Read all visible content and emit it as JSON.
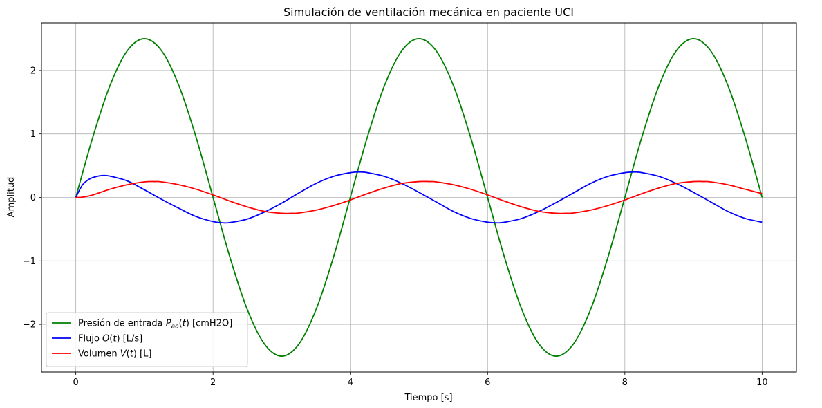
{
  "chart_data": {
    "type": "line",
    "title": "Simulación de ventilación mecánica en paciente UCI",
    "xlabel": "Tiempo [s]",
    "ylabel": "Amplitud",
    "xlim": [
      -0.5,
      10.5
    ],
    "ylim": [
      -2.75,
      2.75
    ],
    "xticks": [
      0,
      2,
      4,
      6,
      8,
      10
    ],
    "xtick_labels": [
      "0",
      "2",
      "4",
      "6",
      "8",
      "10"
    ],
    "yticks": [
      -2,
      -1,
      0,
      1,
      2
    ],
    "ytick_labels": [
      "−2",
      "−1",
      "0",
      "1",
      "2"
    ],
    "grid": true,
    "legend_position": "lower-left",
    "series": [
      {
        "name": "Presión de entrada P_ao(t) [cmH2O]",
        "legend_prefix": "Presión de entrada ",
        "legend_math": "P",
        "legend_sub": "ao",
        "legend_suffix": "(t) [cmH2O]",
        "color": "#008000",
        "x": [
          0,
          0.25,
          0.5,
          0.75,
          1,
          1.25,
          1.5,
          1.75,
          2,
          2.25,
          2.5,
          2.75,
          3,
          3.25,
          3.5,
          3.75,
          4,
          4.25,
          4.5,
          4.75,
          5,
          5.25,
          5.5,
          5.75,
          6,
          6.25,
          6.5,
          6.75,
          7,
          7.25,
          7.5,
          7.75,
          8,
          8.25,
          8.5,
          8.75,
          9,
          9.25,
          9.5,
          9.75,
          10
        ],
        "y": [
          0,
          0.957,
          1.768,
          2.31,
          2.5,
          2.31,
          1.768,
          0.957,
          0,
          -0.957,
          -1.768,
          -2.31,
          -2.5,
          -2.31,
          -1.768,
          -0.957,
          0,
          0.957,
          1.768,
          2.31,
          2.5,
          2.31,
          1.768,
          0.957,
          0,
          -0.957,
          -1.768,
          -2.31,
          -2.5,
          -2.31,
          -1.768,
          -0.957,
          0,
          0.957,
          1.768,
          2.31,
          2.5,
          2.31,
          1.768,
          0.957,
          0
        ]
      },
      {
        "name": "Flujo Q(t) [L/s]",
        "legend_prefix": "Flujo ",
        "legend_math": "Q",
        "legend_sub": "",
        "legend_suffix": "(t) [L/s]",
        "color": "#0000ff",
        "x": [
          0,
          0.1,
          0.2,
          0.3,
          0.4,
          0.5,
          0.75,
          1,
          1.25,
          1.5,
          1.75,
          2,
          2.15,
          2.25,
          2.5,
          2.75,
          3,
          3.25,
          3.5,
          3.75,
          4,
          4.15,
          4.25,
          4.5,
          4.75,
          5,
          5.25,
          5.5,
          5.75,
          6,
          6.15,
          6.25,
          6.5,
          6.75,
          7,
          7.25,
          7.5,
          7.75,
          8,
          8.15,
          8.25,
          8.5,
          8.75,
          9,
          9.25,
          9.5,
          9.75,
          10
        ],
        "y": [
          0,
          0.2,
          0.29,
          0.33,
          0.345,
          0.335,
          0.26,
          0.12,
          -0.03,
          -0.17,
          -0.3,
          -0.38,
          -0.4,
          -0.395,
          -0.34,
          -0.23,
          -0.09,
          0.07,
          0.22,
          0.33,
          0.39,
          0.4,
          0.39,
          0.33,
          0.22,
          0.08,
          -0.07,
          -0.22,
          -0.33,
          -0.39,
          -0.4,
          -0.39,
          -0.33,
          -0.22,
          -0.08,
          0.07,
          0.22,
          0.33,
          0.39,
          0.4,
          0.39,
          0.33,
          0.22,
          0.08,
          -0.07,
          -0.22,
          -0.33,
          -0.39
        ]
      },
      {
        "name": "Volumen V(t) [L]",
        "legend_prefix": "Volumen ",
        "legend_math": "V",
        "legend_sub": "",
        "legend_suffix": "(t) [L]",
        "color": "#ff0000",
        "x": [
          0,
          0.1,
          0.25,
          0.5,
          0.75,
          1,
          1.15,
          1.25,
          1.5,
          1.75,
          2,
          2.25,
          2.5,
          2.75,
          3,
          3.15,
          3.25,
          3.5,
          3.75,
          4,
          4.25,
          4.5,
          4.75,
          5,
          5.15,
          5.25,
          5.5,
          5.75,
          6,
          6.25,
          6.5,
          6.75,
          7,
          7.15,
          7.25,
          7.5,
          7.75,
          8,
          8.25,
          8.5,
          8.75,
          9,
          9.15,
          9.25,
          9.5,
          9.75,
          10
        ],
        "y": [
          0,
          0.005,
          0.04,
          0.13,
          0.2,
          0.245,
          0.25,
          0.245,
          0.2,
          0.13,
          0.04,
          -0.06,
          -0.15,
          -0.22,
          -0.25,
          -0.25,
          -0.245,
          -0.2,
          -0.13,
          -0.04,
          0.06,
          0.15,
          0.22,
          0.25,
          0.25,
          0.245,
          0.2,
          0.13,
          0.04,
          -0.06,
          -0.15,
          -0.22,
          -0.25,
          -0.25,
          -0.245,
          -0.2,
          -0.13,
          -0.04,
          0.06,
          0.15,
          0.22,
          0.25,
          0.25,
          0.245,
          0.2,
          0.13,
          0.06
        ]
      }
    ]
  }
}
